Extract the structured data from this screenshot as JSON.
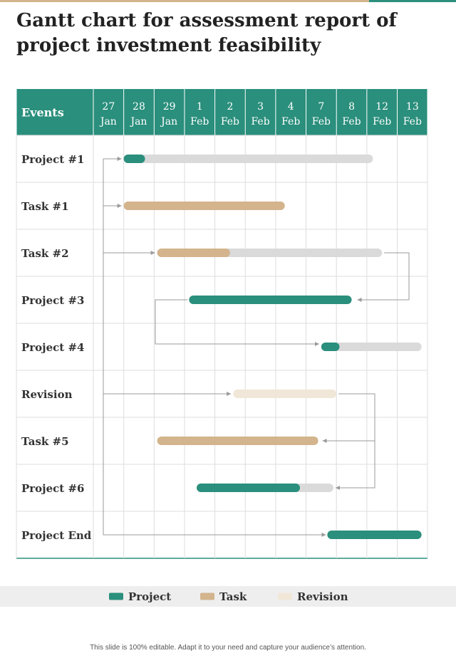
{
  "title": "Gantt chart for assessment report of project investment feasibility",
  "footer": "This slide is 100% editable. Adapt it to your need and capture your audience’s attention.",
  "colors": {
    "header_bg": "#2a8f7c",
    "project": "#2a8f7c",
    "task": "#d3b48c",
    "revision": "#f1e7d8",
    "remaining": "#dadada",
    "arrow": "#9a9a9a",
    "grid": "#dddddd"
  },
  "chart_data": {
    "type": "gantt",
    "header_label": "Events",
    "dates": [
      {
        "day": "27",
        "month": "Jan"
      },
      {
        "day": "28",
        "month": "Jan"
      },
      {
        "day": "29",
        "month": "Jan"
      },
      {
        "day": "1",
        "month": "Feb"
      },
      {
        "day": "2",
        "month": "Feb"
      },
      {
        "day": "3",
        "month": "Feb"
      },
      {
        "day": "4",
        "month": "Feb"
      },
      {
        "day": "7",
        "month": "Feb"
      },
      {
        "day": "8",
        "month": "Feb"
      },
      {
        "day": "12",
        "month": "Feb"
      },
      {
        "day": "13",
        "month": "Feb"
      }
    ],
    "rows": [
      {
        "label": "Project #1",
        "type": "project",
        "start": 1.0,
        "end": 9.2,
        "progress": 1.7
      },
      {
        "label": "Task #1",
        "type": "task",
        "start": 1.0,
        "end": 6.3
      },
      {
        "label": "Task #2",
        "type": "task",
        "start": 2.1,
        "end": 9.5,
        "progress": 4.5
      },
      {
        "label": "Project #3",
        "type": "project",
        "start": 3.15,
        "end": 8.5
      },
      {
        "label": "Project #4",
        "type": "project",
        "start": 7.5,
        "end": 10.8,
        "progress": 8.1
      },
      {
        "label": "Revision",
        "type": "revision",
        "start": 4.6,
        "end": 8.0
      },
      {
        "label": "Task #5",
        "type": "task",
        "start": 2.1,
        "end": 7.4
      },
      {
        "label": "Project #6",
        "type": "project",
        "start": 3.4,
        "end": 7.9,
        "progress": 6.8
      },
      {
        "label": "Project End",
        "type": "project",
        "start": 7.7,
        "end": 10.8
      }
    ],
    "legend": [
      {
        "name": "Project",
        "type": "project"
      },
      {
        "name": "Task",
        "type": "task"
      },
      {
        "name": "Revision",
        "type": "revision"
      }
    ],
    "legend_position": "bottom",
    "grid": true
  }
}
